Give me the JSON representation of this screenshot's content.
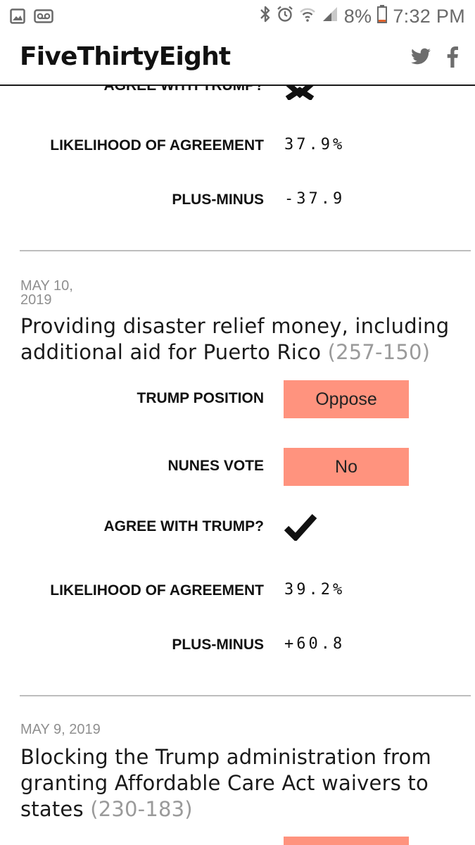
{
  "status_bar": {
    "battery": "8%",
    "time": "7:32 PM"
  },
  "header": {
    "logo": "FiveThirtyEight"
  },
  "votes": [
    {
      "agree_label": "AGREE WITH TRUMP?",
      "likelihood_label": "LIKELIHOOD OF AGREEMENT",
      "likelihood_value": "37.9%",
      "plus_minus_label": "PLUS-MINUS",
      "plus_minus_value": "-37.9"
    },
    {
      "date": "MAY 10,\n2019",
      "title": "Providing disaster relief money, including additional aid for Puerto Rico",
      "tally": "(257-150)",
      "trump_position_label": "TRUMP POSITION",
      "trump_position_value": "Oppose",
      "nunes_vote_label": "NUNES VOTE",
      "nunes_vote_value": "No",
      "agree_label": "AGREE WITH TRUMP?",
      "likelihood_label": "LIKELIHOOD OF AGREEMENT",
      "likelihood_value": "39.2%",
      "plus_minus_label": "PLUS-MINUS",
      "plus_minus_value": "+60.8"
    },
    {
      "date": "MAY 9, 2019",
      "title": "Blocking the Trump administration from granting Affordable Care Act waivers to states",
      "tally": "(230-183)"
    }
  ],
  "colors": {
    "pill": "#ff937e",
    "divider": "#bdbdbd",
    "muted": "#8f8f8f"
  }
}
